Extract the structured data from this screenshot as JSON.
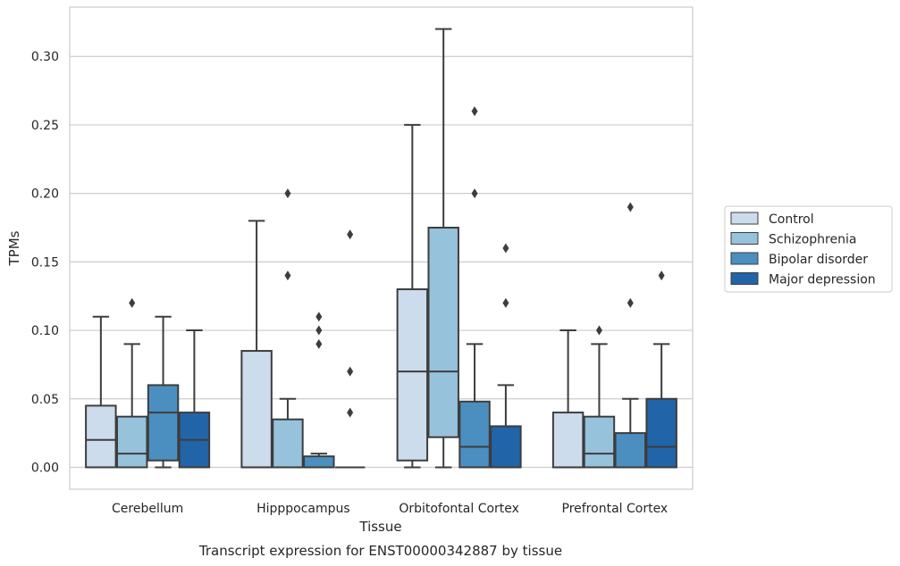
{
  "chart_data": {
    "type": "box",
    "caption": "Transcript expression for ENST00000342887 by tissue",
    "xlabel": "Tissue",
    "ylabel": "TPMs",
    "ylim": [
      -0.016,
      0.336
    ],
    "yticks": [
      0.0,
      0.05,
      0.1,
      0.15,
      0.2,
      0.25,
      0.3
    ],
    "ytick_labels": [
      "0.00",
      "0.05",
      "0.10",
      "0.15",
      "0.20",
      "0.25",
      "0.30"
    ],
    "categories": [
      "Cerebellum",
      "Hipppocampus",
      "Orbitofontal Cortex",
      "Prefrontal Cortex"
    ],
    "grid": "horizontal",
    "legend_position": "right, outside plot",
    "series": [
      {
        "name": "Control",
        "color": "#cddcec",
        "boxes": [
          {
            "q1": 0.0,
            "median": 0.02,
            "q3": 0.045,
            "whisker_low": 0.0,
            "whisker_high": 0.11,
            "outliers": []
          },
          {
            "q1": 0.0,
            "median": 0.0,
            "q3": 0.085,
            "whisker_low": 0.0,
            "whisker_high": 0.18,
            "outliers": []
          },
          {
            "q1": 0.005,
            "median": 0.07,
            "q3": 0.13,
            "whisker_low": 0.0,
            "whisker_high": 0.25,
            "outliers": []
          },
          {
            "q1": 0.0,
            "median": 0.0,
            "q3": 0.04,
            "whisker_low": 0.0,
            "whisker_high": 0.1,
            "outliers": []
          }
        ]
      },
      {
        "name": "Schizophrenia",
        "color": "#97c2dc",
        "boxes": [
          {
            "q1": 0.0,
            "median": 0.01,
            "q3": 0.037,
            "whisker_low": 0.0,
            "whisker_high": 0.09,
            "outliers": [
              0.12
            ]
          },
          {
            "q1": 0.0,
            "median": 0.0,
            "q3": 0.035,
            "whisker_low": 0.0,
            "whisker_high": 0.05,
            "outliers": [
              0.14,
              0.2
            ]
          },
          {
            "q1": 0.022,
            "median": 0.07,
            "q3": 0.175,
            "whisker_low": 0.0,
            "whisker_high": 0.32,
            "outliers": []
          },
          {
            "q1": 0.0,
            "median": 0.01,
            "q3": 0.037,
            "whisker_low": 0.0,
            "whisker_high": 0.09,
            "outliers": [
              0.1
            ]
          }
        ]
      },
      {
        "name": "Bipolar disorder",
        "color": "#4b8fc0",
        "boxes": [
          {
            "q1": 0.005,
            "median": 0.04,
            "q3": 0.06,
            "whisker_low": 0.0,
            "whisker_high": 0.11,
            "outliers": []
          },
          {
            "q1": 0.0,
            "median": 0.0,
            "q3": 0.008,
            "whisker_low": 0.0,
            "whisker_high": 0.01,
            "outliers": [
              0.09,
              0.1,
              0.11
            ]
          },
          {
            "q1": 0.0,
            "median": 0.015,
            "q3": 0.048,
            "whisker_low": 0.0,
            "whisker_high": 0.09,
            "outliers": [
              0.2,
              0.26
            ]
          },
          {
            "q1": 0.0,
            "median": 0.0,
            "q3": 0.025,
            "whisker_low": 0.0,
            "whisker_high": 0.05,
            "outliers": [
              0.12,
              0.19
            ]
          }
        ]
      },
      {
        "name": "Major depression",
        "color": "#2264a8",
        "boxes": [
          {
            "q1": 0.0,
            "median": 0.02,
            "q3": 0.04,
            "whisker_low": 0.0,
            "whisker_high": 0.1,
            "outliers": []
          },
          {
            "q1": 0.0,
            "median": 0.0,
            "q3": 0.0,
            "whisker_low": 0.0,
            "whisker_high": 0.0,
            "outliers": [
              0.04,
              0.07,
              0.17
            ]
          },
          {
            "q1": 0.0,
            "median": 0.0,
            "q3": 0.03,
            "whisker_low": 0.0,
            "whisker_high": 0.06,
            "outliers": [
              0.12,
              0.16
            ]
          },
          {
            "q1": 0.0,
            "median": 0.015,
            "q3": 0.05,
            "whisker_low": 0.0,
            "whisker_high": 0.09,
            "outliers": [
              0.14
            ]
          }
        ]
      }
    ]
  }
}
